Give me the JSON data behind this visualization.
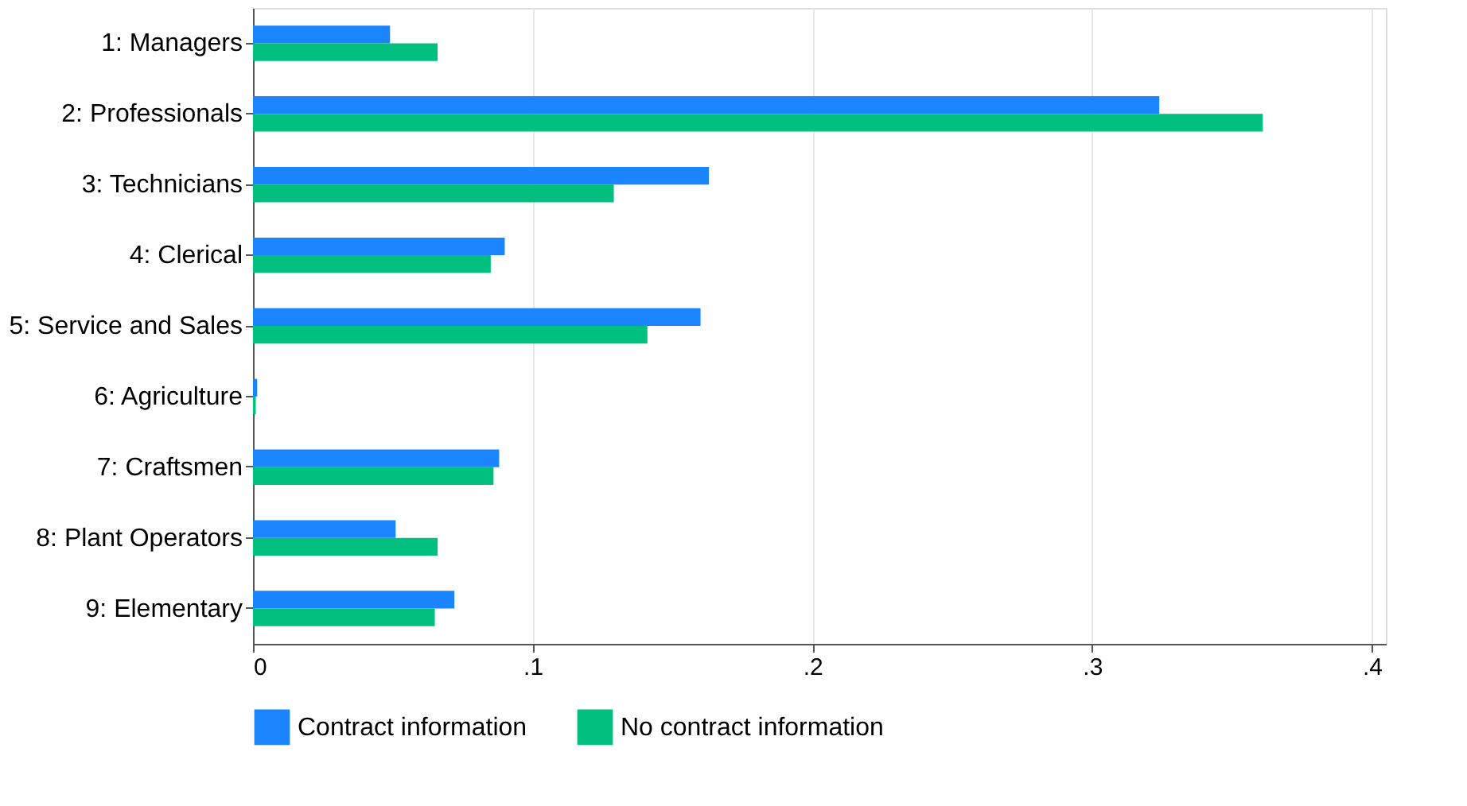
{
  "chart_data": {
    "type": "bar",
    "orientation": "horizontal",
    "categories": [
      "1: Managers",
      "2: Professionals",
      "3: Technicians",
      "4: Clerical",
      "5: Service and Sales",
      "6: Agriculture",
      "7: Craftsmen",
      "8: Plant Operators",
      "9: Elementary"
    ],
    "series": [
      {
        "name": "Contract information",
        "color": "#1a85ff",
        "values": [
          0.049,
          0.324,
          0.163,
          0.09,
          0.16,
          0.0015,
          0.088,
          0.051,
          0.072
        ]
      },
      {
        "name": "No contract information",
        "color": "#00bf7f",
        "values": [
          0.066,
          0.361,
          0.129,
          0.085,
          0.141,
          0.001,
          0.086,
          0.066,
          0.065
        ]
      }
    ],
    "xlim": [
      0,
      0.405
    ],
    "xticks": [
      0,
      {
        "value": 0.1,
        "label": ".1"
      },
      {
        "value": 0.2,
        "label": ".2"
      },
      {
        "value": 0.3,
        "label": ".3"
      },
      {
        "value": 0.4,
        "label": ".4"
      }
    ],
    "grid": "x",
    "legend": "bottom"
  }
}
